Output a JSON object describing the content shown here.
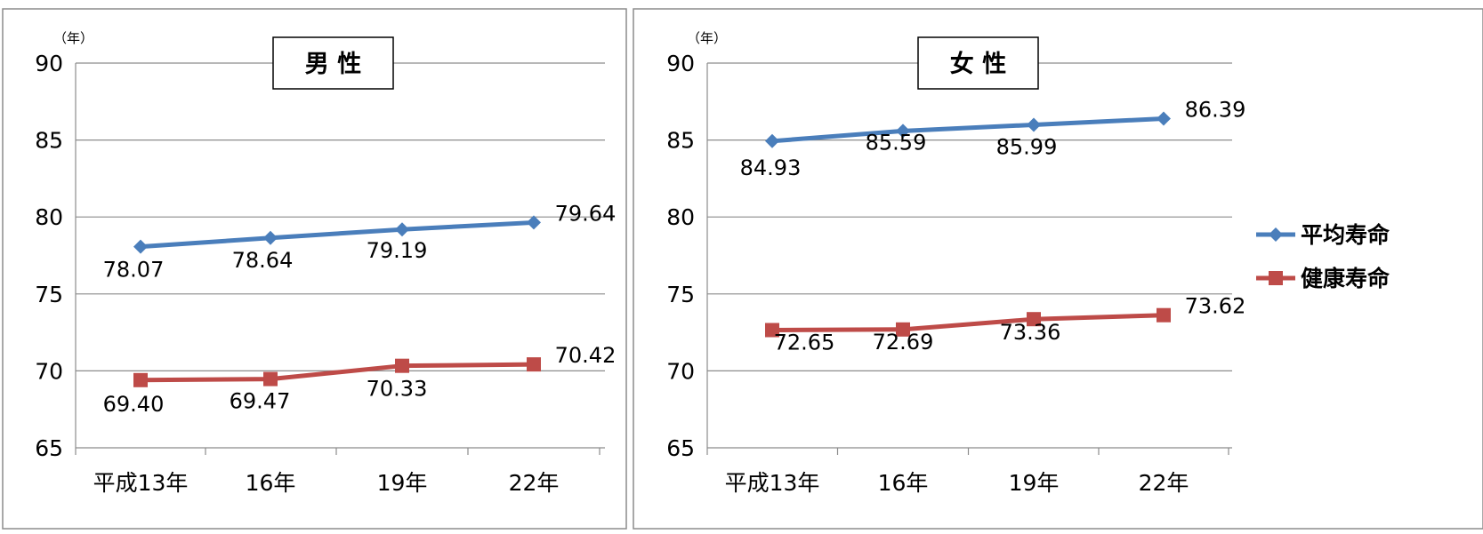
{
  "chart_data": [
    {
      "type": "line",
      "title": "男 性",
      "y_unit": "（年）",
      "ylim": [
        65,
        90
      ],
      "yticks": [
        "65",
        "70",
        "75",
        "80",
        "85",
        "90"
      ],
      "categories": [
        "平成13年",
        "16年",
        "19年",
        "22年"
      ],
      "series": [
        {
          "name": "平均寿命",
          "values": [
            78.07,
            78.64,
            79.19,
            79.64
          ],
          "labels": [
            "78.07",
            "78.64",
            "79.19",
            "79.64"
          ],
          "color": "#4a7ebb",
          "marker": "diamond"
        },
        {
          "name": "健康寿命",
          "values": [
            69.4,
            69.47,
            70.33,
            70.42
          ],
          "labels": [
            "69.40",
            "69.47",
            "70.33",
            "70.42"
          ],
          "color": "#be4b48",
          "marker": "square"
        }
      ],
      "grid": true,
      "legend": "none"
    },
    {
      "type": "line",
      "title": "女 性",
      "y_unit": "（年）",
      "ylim": [
        65,
        90
      ],
      "yticks": [
        "65",
        "70",
        "75",
        "80",
        "85",
        "90"
      ],
      "categories": [
        "平成13年",
        "16年",
        "19年",
        "22年"
      ],
      "series": [
        {
          "name": "平均寿命",
          "values": [
            84.93,
            85.59,
            85.99,
            86.39
          ],
          "labels": [
            "84.93",
            "85.59",
            "85.99",
            "86.39"
          ],
          "color": "#4a7ebb",
          "marker": "diamond"
        },
        {
          "name": "健康寿命",
          "values": [
            72.65,
            72.69,
            73.36,
            73.62
          ],
          "labels": [
            "72.65",
            "72.69",
            "73.36",
            "73.62"
          ],
          "color": "#be4b48",
          "marker": "square"
        }
      ],
      "grid": true,
      "legend": "right"
    }
  ]
}
